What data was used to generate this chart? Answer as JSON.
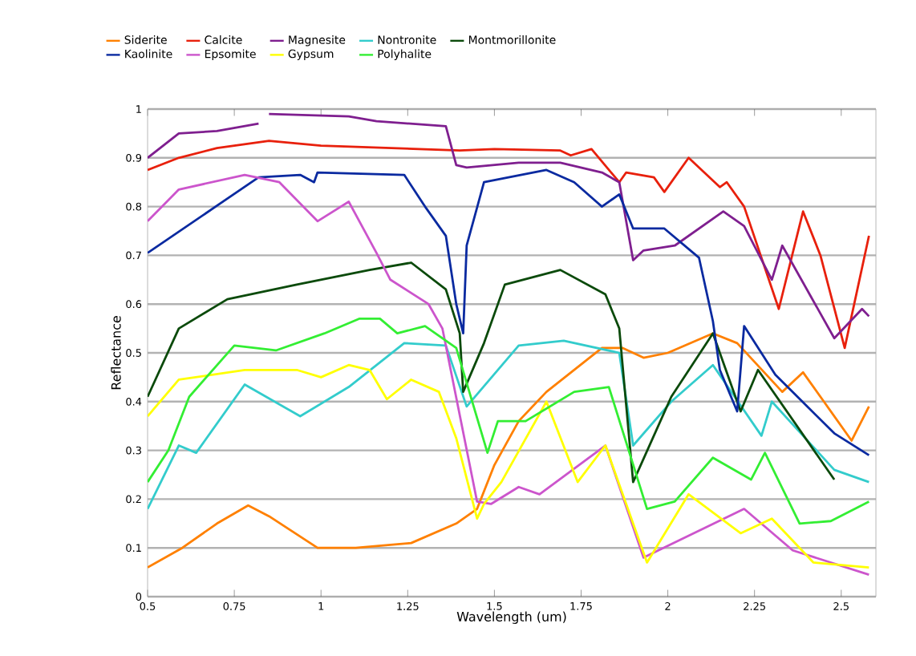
{
  "chart_data": {
    "type": "line",
    "xlabel": "Wavelength (um)",
    "ylabel": "Reflectance",
    "xlim": [
      0.5,
      2.6
    ],
    "xticks": [
      0.5,
      0.75,
      1,
      1.25,
      1.5,
      1.75,
      2,
      2.25,
      2.5
    ],
    "ylim": [
      0,
      1
    ],
    "yticks": [
      0,
      0.1,
      0.2,
      0.3,
      0.4,
      0.5,
      0.6,
      0.7,
      0.8,
      0.9,
      1
    ],
    "grid": "y",
    "legend": "top",
    "marker": "none",
    "line_style": "solid",
    "series": [
      {
        "name": "Siderite",
        "color": "#ff8000",
        "x": [
          0.5,
          0.6,
          0.7,
          0.79,
          0.85,
          0.99,
          1.1,
          1.26,
          1.39,
          1.45,
          1.5,
          1.57,
          1.65,
          1.81,
          1.87,
          1.93,
          2.0,
          2.13,
          2.2,
          2.33,
          2.39,
          2.45,
          2.53,
          2.58
        ],
        "values": [
          0.06,
          0.1,
          0.15,
          0.187,
          0.165,
          0.1,
          0.1,
          0.11,
          0.15,
          0.18,
          0.27,
          0.36,
          0.42,
          0.51,
          0.51,
          0.49,
          0.5,
          0.54,
          0.52,
          0.42,
          0.46,
          0.4,
          0.32,
          0.39
        ]
      },
      {
        "name": "Calcite",
        "color": "#e8200c",
        "x": [
          0.5,
          0.59,
          0.7,
          0.85,
          1.0,
          1.2,
          1.4,
          1.5,
          1.69,
          1.72,
          1.78,
          1.86,
          1.88,
          1.96,
          1.99,
          2.06,
          2.15,
          2.17,
          2.22,
          2.32,
          2.39,
          2.44,
          2.51,
          2.58
        ],
        "values": [
          0.875,
          0.9,
          0.92,
          0.935,
          0.925,
          0.92,
          0.915,
          0.918,
          0.915,
          0.905,
          0.918,
          0.85,
          0.87,
          0.86,
          0.83,
          0.9,
          0.84,
          0.85,
          0.8,
          0.59,
          0.79,
          0.7,
          0.51,
          0.74
        ]
      },
      {
        "name": "Magnesite",
        "color": "#7f1f8f",
        "x": [
          0.5,
          0.59,
          0.7,
          0.82,
          0.835,
          0.85,
          1.08,
          1.16,
          1.36,
          1.39,
          1.42,
          1.57,
          1.69,
          1.81,
          1.86,
          1.9,
          1.93,
          2.02,
          2.16,
          2.22,
          2.3,
          2.33,
          2.48,
          2.56,
          2.58
        ],
        "values": [
          0.9,
          0.95,
          0.955,
          0.97,
          null,
          0.99,
          0.985,
          0.975,
          0.965,
          0.885,
          0.88,
          0.89,
          0.89,
          0.87,
          0.85,
          0.69,
          0.71,
          0.72,
          0.79,
          0.76,
          0.65,
          0.72,
          0.53,
          0.59,
          0.575
        ]
      },
      {
        "name": "Nontronite",
        "color": "#33cccc",
        "x": [
          0.5,
          0.59,
          0.64,
          0.78,
          0.94,
          1.08,
          1.24,
          1.36,
          1.42,
          1.57,
          1.7,
          1.86,
          1.9,
          2.01,
          2.13,
          2.27,
          2.3,
          2.48,
          2.58
        ],
        "values": [
          0.18,
          0.31,
          0.295,
          0.435,
          0.37,
          0.43,
          0.52,
          0.515,
          0.39,
          0.515,
          0.525,
          0.5,
          0.31,
          0.4,
          0.475,
          0.33,
          0.4,
          0.26,
          0.235
        ]
      },
      {
        "name": "Montmorillonite",
        "color": "#0b4a0b",
        "x": [
          0.5,
          0.59,
          0.73,
          0.93,
          1.14,
          1.26,
          1.36,
          1.4,
          1.41,
          1.47,
          1.53,
          1.69,
          1.82,
          1.86,
          1.9,
          2.01,
          2.13,
          2.21,
          2.26,
          2.48
        ],
        "values": [
          0.41,
          0.55,
          0.61,
          0.64,
          0.67,
          0.685,
          0.63,
          0.54,
          0.42,
          0.52,
          0.64,
          0.67,
          0.62,
          0.55,
          0.235,
          0.41,
          0.54,
          0.38,
          0.465,
          0.24
        ]
      },
      {
        "name": "Kaolinite",
        "color": "#0a2aa0",
        "x": [
          0.5,
          0.82,
          0.94,
          0.98,
          0.99,
          1.24,
          1.3,
          1.36,
          1.39,
          1.41,
          1.42,
          1.47,
          1.65,
          1.73,
          1.81,
          1.86,
          1.9,
          1.99,
          2.09,
          2.13,
          2.15,
          2.2,
          2.22,
          2.31,
          2.48,
          2.58
        ],
        "values": [
          0.705,
          0.86,
          0.865,
          0.85,
          0.87,
          0.865,
          0.8,
          0.74,
          0.6,
          0.54,
          0.72,
          0.85,
          0.875,
          0.85,
          0.8,
          0.825,
          0.755,
          0.755,
          0.695,
          0.565,
          0.465,
          0.38,
          0.555,
          0.455,
          0.335,
          0.29
        ]
      },
      {
        "name": "Epsomite",
        "color": "#cc55cc",
        "x": [
          0.5,
          0.59,
          0.78,
          0.88,
          0.99,
          1.08,
          1.16,
          1.2,
          1.31,
          1.35,
          1.45,
          1.49,
          1.57,
          1.63,
          1.82,
          1.93,
          2.22,
          2.36,
          2.58
        ],
        "values": [
          0.77,
          0.835,
          0.865,
          0.85,
          0.77,
          0.81,
          0.705,
          0.65,
          0.6,
          0.55,
          0.195,
          0.19,
          0.225,
          0.21,
          0.31,
          0.08,
          0.18,
          0.095,
          0.045
        ]
      },
      {
        "name": "Gypsum",
        "color": "#ffff00",
        "x": [
          0.5,
          0.59,
          0.78,
          0.93,
          1.0,
          1.08,
          1.14,
          1.19,
          1.26,
          1.34,
          1.39,
          1.45,
          1.47,
          1.52,
          1.65,
          1.74,
          1.82,
          1.94,
          2.06,
          2.21,
          2.3,
          2.42,
          2.58
        ],
        "values": [
          0.37,
          0.445,
          0.465,
          0.465,
          0.45,
          0.475,
          0.465,
          0.405,
          0.445,
          0.42,
          0.325,
          0.16,
          0.19,
          0.235,
          0.4,
          0.235,
          0.31,
          0.07,
          0.21,
          0.13,
          0.16,
          0.07,
          0.06
        ]
      },
      {
        "name": "Polyhalite",
        "color": "#33ee33",
        "x": [
          0.5,
          0.56,
          0.62,
          0.75,
          0.87,
          1.01,
          1.11,
          1.17,
          1.22,
          1.3,
          1.39,
          1.48,
          1.51,
          1.59,
          1.73,
          1.83,
          1.94,
          2.02,
          2.13,
          2.24,
          2.28,
          2.38,
          2.47,
          2.58
        ],
        "values": [
          0.235,
          0.3,
          0.41,
          0.515,
          0.505,
          0.54,
          0.57,
          0.57,
          0.54,
          0.555,
          0.51,
          0.295,
          0.36,
          0.36,
          0.42,
          0.43,
          0.18,
          0.195,
          0.285,
          0.24,
          0.295,
          0.15,
          0.155,
          0.195
        ]
      }
    ]
  }
}
